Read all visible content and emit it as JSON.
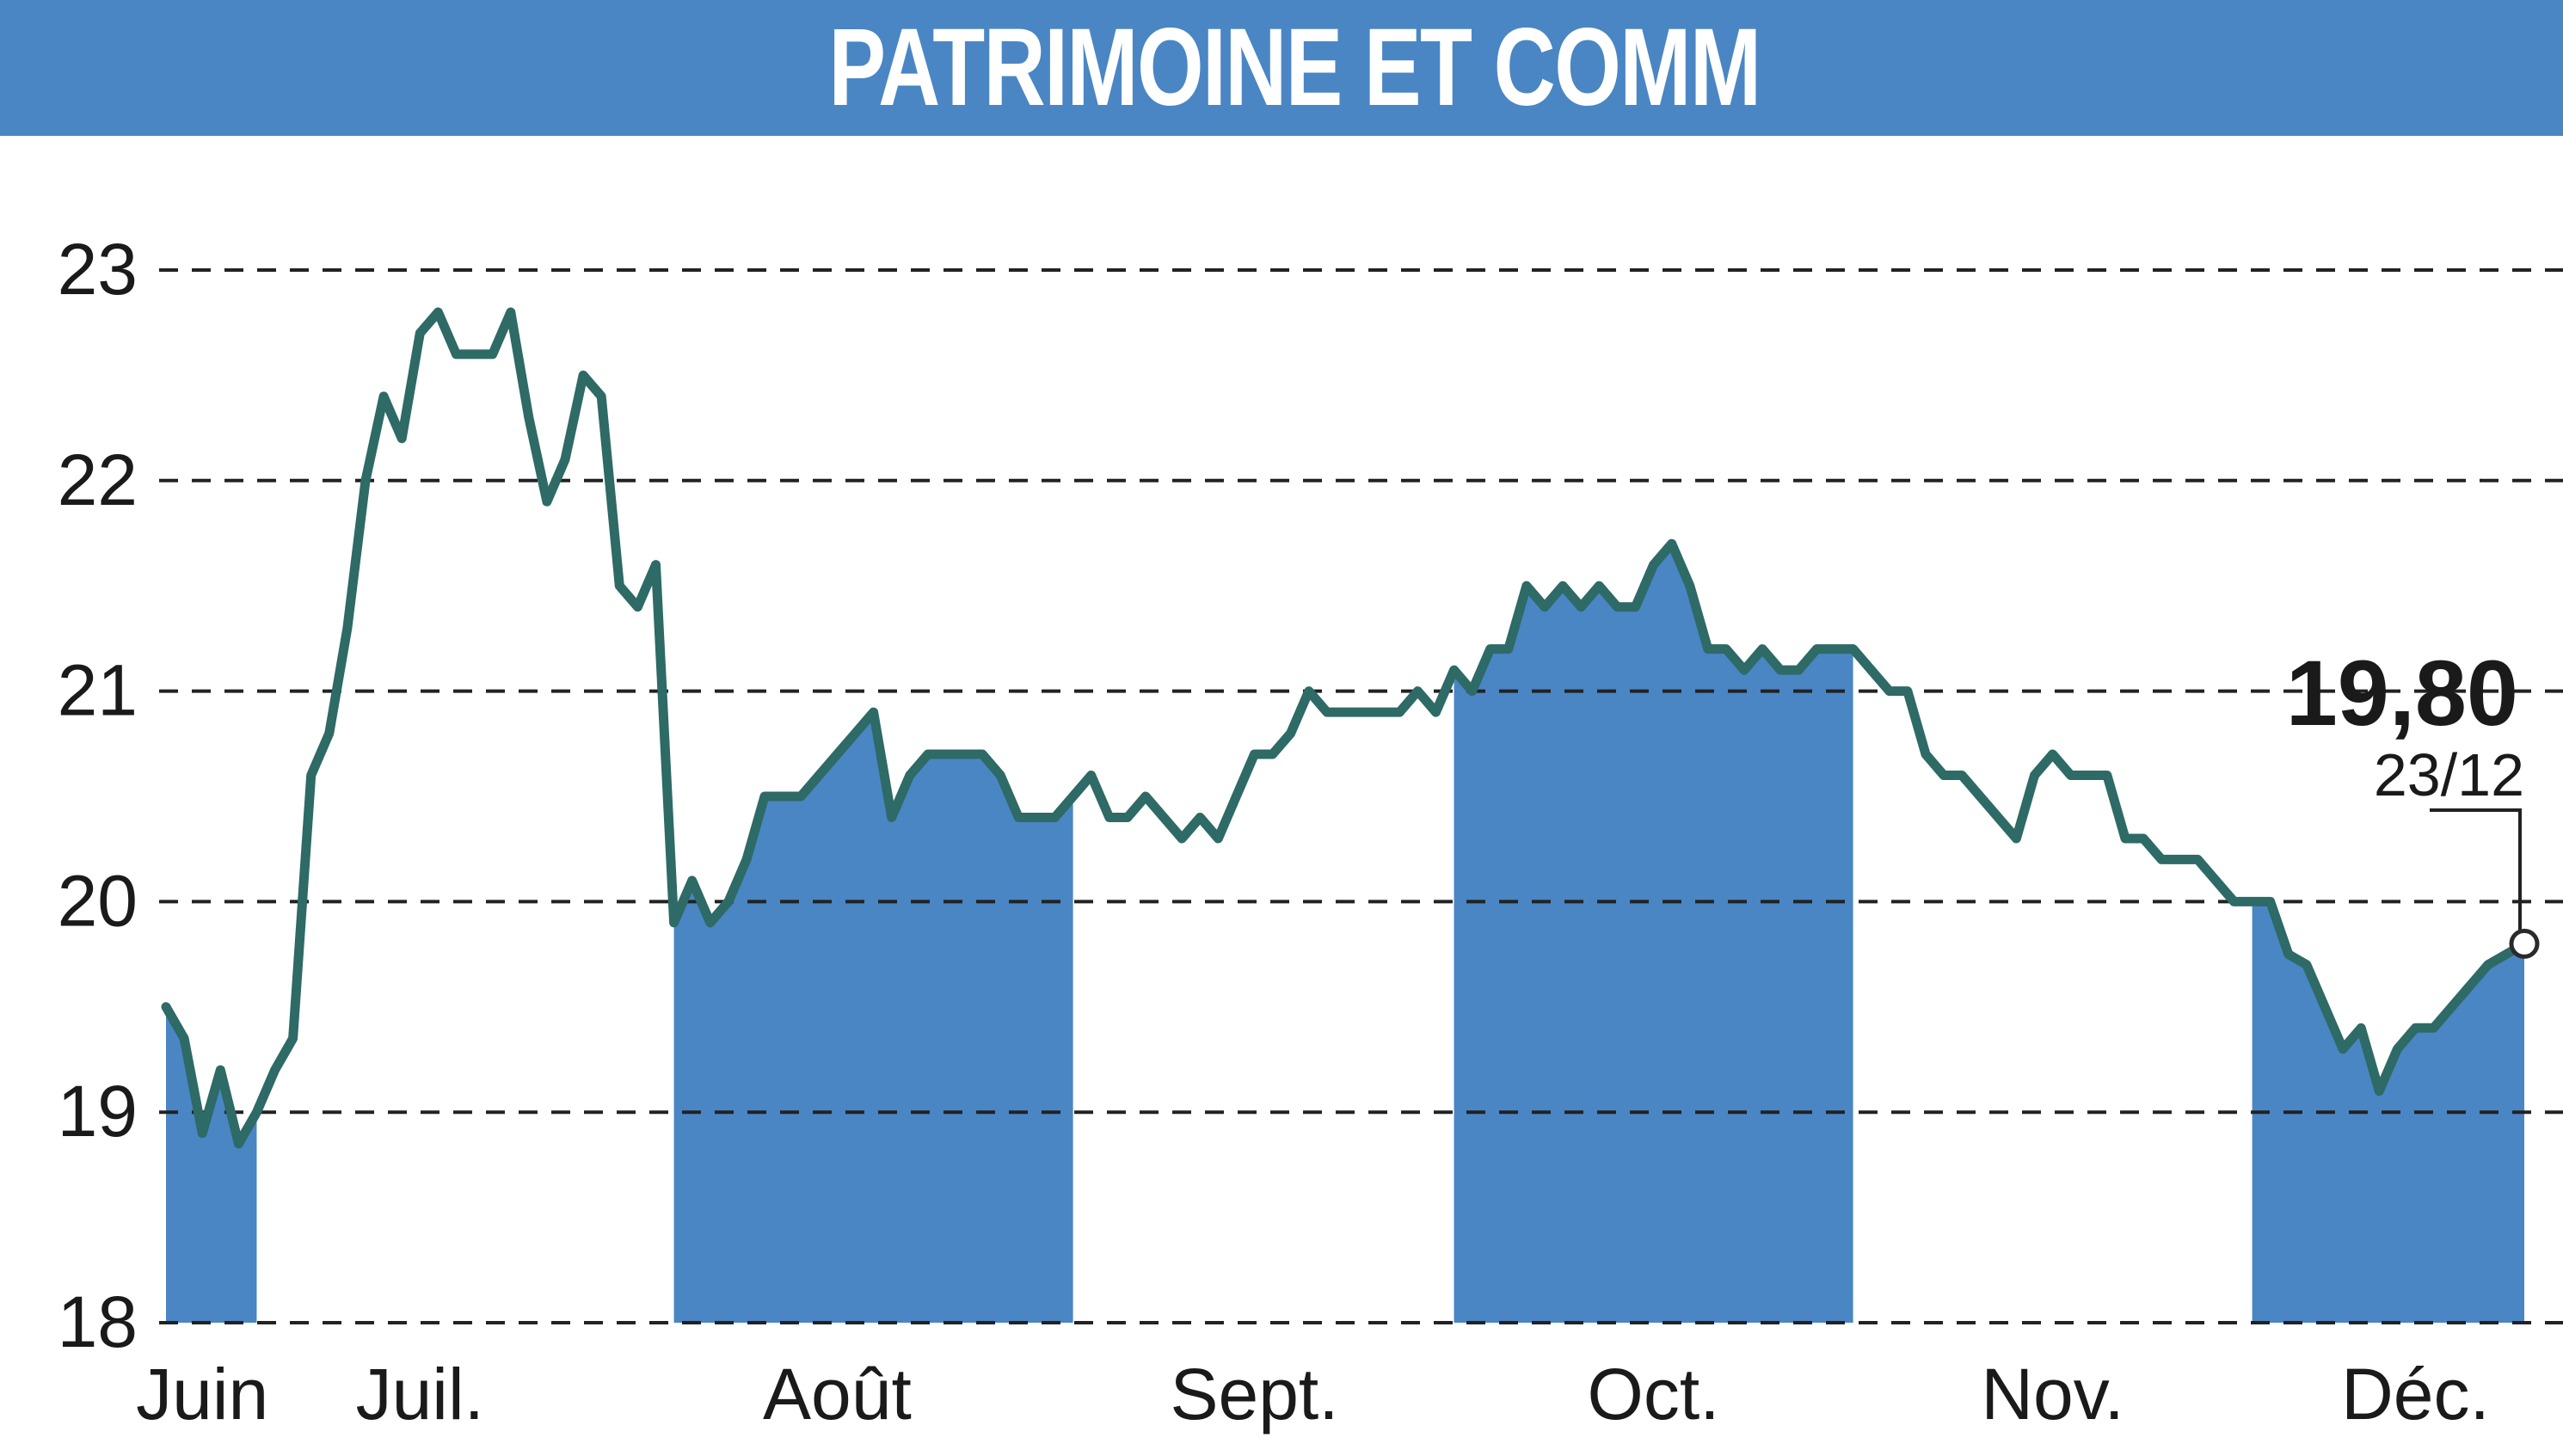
{
  "chart_data": {
    "type": "line",
    "title": "PATRIMOINE ET COMM",
    "xlabel": "",
    "ylabel": "",
    "ylim": [
      18,
      23
    ],
    "yticks": [
      18,
      19,
      20,
      21,
      22,
      23
    ],
    "grid": true,
    "month_labels": [
      "Juin",
      "Juil.",
      "Août",
      "Sept.",
      "Oct.",
      "Nov.",
      "Déc."
    ],
    "last_value_label": "19,80",
    "last_date_label": "23/12",
    "colors": {
      "line": "#2e6a66",
      "band": "#4a86c4",
      "title_bg": "#4a86c4",
      "grid": "#222222"
    },
    "series": [
      {
        "values": [
          19.5,
          19.35,
          18.9,
          19.2,
          18.85,
          19.0,
          19.2,
          19.35,
          20.6,
          20.8,
          21.3,
          22.0,
          22.4,
          22.2,
          22.7,
          22.8,
          22.6,
          22.6,
          22.6,
          22.8,
          22.3,
          21.9,
          22.1,
          22.5,
          22.4,
          21.5,
          21.4,
          21.6,
          19.9,
          20.1,
          19.9,
          20.0,
          20.2,
          20.5,
          20.5,
          20.5,
          20.6,
          20.7,
          20.8,
          20.9,
          20.4,
          20.6,
          20.7,
          20.7,
          20.7,
          20.7,
          20.6,
          20.4,
          20.4,
          20.4,
          20.5,
          20.6,
          20.4,
          20.4,
          20.5,
          20.4,
          20.3,
          20.4,
          20.3,
          20.5,
          20.7,
          20.7,
          20.8,
          21.0,
          20.9,
          20.9,
          20.9,
          20.9,
          20.9,
          21.0,
          20.9,
          21.1,
          21.0,
          21.2,
          21.2,
          21.5,
          21.4,
          21.5,
          21.4,
          21.5,
          21.4,
          21.4,
          21.6,
          21.7,
          21.5,
          21.2,
          21.2,
          21.1,
          21.2,
          21.1,
          21.1,
          21.2,
          21.2,
          21.2,
          21.1,
          21.0,
          21.0,
          20.7,
          20.6,
          20.6,
          20.5,
          20.4,
          20.3,
          20.6,
          20.7,
          20.6,
          20.6,
          20.6,
          20.3,
          20.3,
          20.2,
          20.2,
          20.2,
          20.1,
          20.0,
          20.0,
          20.0,
          19.75,
          19.7,
          19.5,
          19.3,
          19.4,
          19.1,
          19.3,
          19.4,
          19.4,
          19.5,
          19.6,
          19.7,
          19.75,
          19.8
        ]
      }
    ]
  }
}
